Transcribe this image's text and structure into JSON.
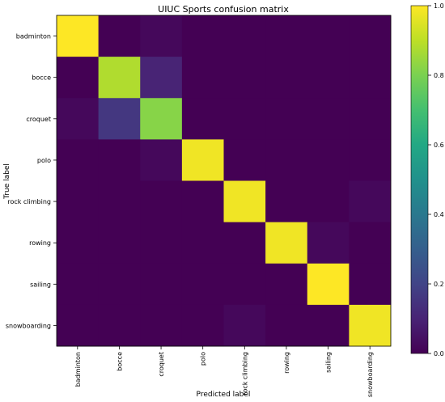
{
  "chart_data": {
    "type": "heatmap",
    "title": "UIUC Sports confusion matrix",
    "xlabel": "Predicted label",
    "ylabel": "True label",
    "x_categories": [
      "badminton",
      "bocce",
      "croquet",
      "polo",
      "rock climbing",
      "rowing",
      "sailing",
      "snowboarding"
    ],
    "y_categories": [
      "badminton",
      "bocce",
      "croquet",
      "polo",
      "rock climbing",
      "rowing",
      "sailing",
      "snowboarding"
    ],
    "values": [
      [
        1.0,
        0.0,
        0.02,
        0.0,
        0.0,
        0.0,
        0.0,
        0.0
      ],
      [
        0.0,
        0.88,
        0.1,
        0.0,
        0.0,
        0.0,
        0.0,
        0.0
      ],
      [
        0.02,
        0.16,
        0.82,
        0.0,
        0.0,
        0.0,
        0.0,
        0.0
      ],
      [
        0.0,
        0.0,
        0.02,
        0.98,
        0.0,
        0.0,
        0.0,
        0.0
      ],
      [
        0.0,
        0.0,
        0.0,
        0.0,
        0.98,
        0.0,
        0.0,
        0.02
      ],
      [
        0.0,
        0.0,
        0.0,
        0.0,
        0.0,
        0.98,
        0.02,
        0.0
      ],
      [
        0.0,
        0.0,
        0.0,
        0.0,
        0.0,
        0.0,
        1.0,
        0.0
      ],
      [
        0.0,
        0.0,
        0.0,
        0.0,
        0.02,
        0.0,
        0.0,
        0.98
      ]
    ],
    "colormap": "viridis",
    "colorbar": {
      "range": [
        0.0,
        1.0
      ],
      "ticks": [
        0.0,
        0.2,
        0.4,
        0.6,
        0.8,
        1.0
      ],
      "tick_labels": [
        "0.0",
        "0.2",
        "0.4",
        "0.6",
        "0.8",
        "1.0"
      ]
    },
    "grid": false
  }
}
